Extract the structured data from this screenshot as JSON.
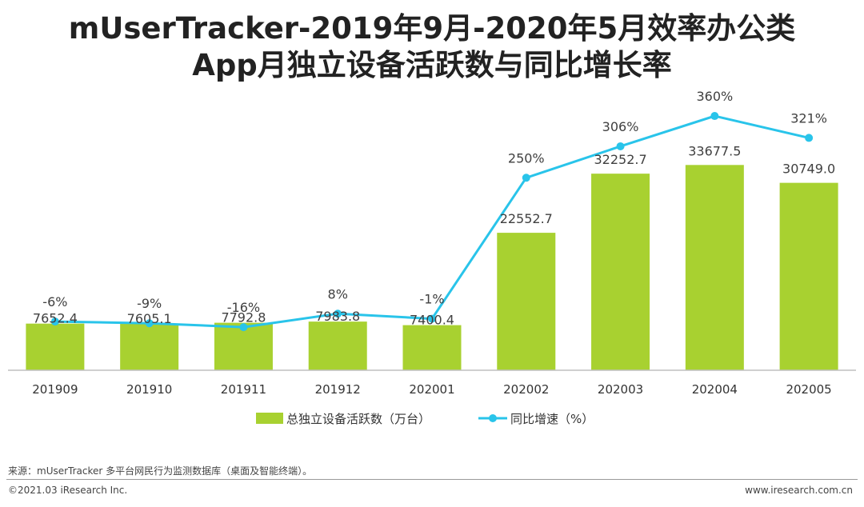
{
  "title_line1": "mUserTracker-2019年9月-2020年5月效率办公类",
  "title_line2": "App月独立设备活跃数与同比增长率",
  "source": "来源：mUserTracker 多平台网民行为监测数据库（桌面及智能终端）。",
  "footer_left": "©2021.03 iResearch Inc.",
  "footer_right": "www.iresearch.com.cn",
  "colors": {
    "bar": "#a8d130",
    "line": "#29c4ea",
    "axis": "#bfbfbf"
  },
  "chart_data": {
    "type": "bar",
    "title": "mUserTracker-2019年9月-2020年5月效率办公类App月独立设备活跃数与同比增长率",
    "categories": [
      "201909",
      "201910",
      "201911",
      "201912",
      "202001",
      "202002",
      "202003",
      "202004",
      "202005"
    ],
    "series": [
      {
        "name": "总独立设备活跃数（万台）",
        "kind": "bar",
        "values": [
          7652.4,
          7605.1,
          7792.8,
          7983.8,
          7400.4,
          22552.7,
          32252.7,
          33677.5,
          30749.0
        ],
        "labels": [
          "7652.4",
          "7605.1",
          "7792.8",
          "7983.8",
          "7400.4",
          "22552.7",
          "32252.7",
          "33677.5",
          "30749.0"
        ]
      },
      {
        "name": "同比增速（%）",
        "kind": "line",
        "values": [
          -6,
          -9,
          -16,
          8,
          -1,
          250,
          306,
          360,
          321
        ],
        "labels": [
          "-6%",
          "-9%",
          "-16%",
          "8%",
          "-1%",
          "250%",
          "306%",
          "360%",
          "321%"
        ]
      }
    ],
    "bar_axis_range": [
      0,
      45000
    ],
    "line_axis_range": [
      -50,
      380
    ],
    "grid": false,
    "legend_position": "bottom-center"
  }
}
